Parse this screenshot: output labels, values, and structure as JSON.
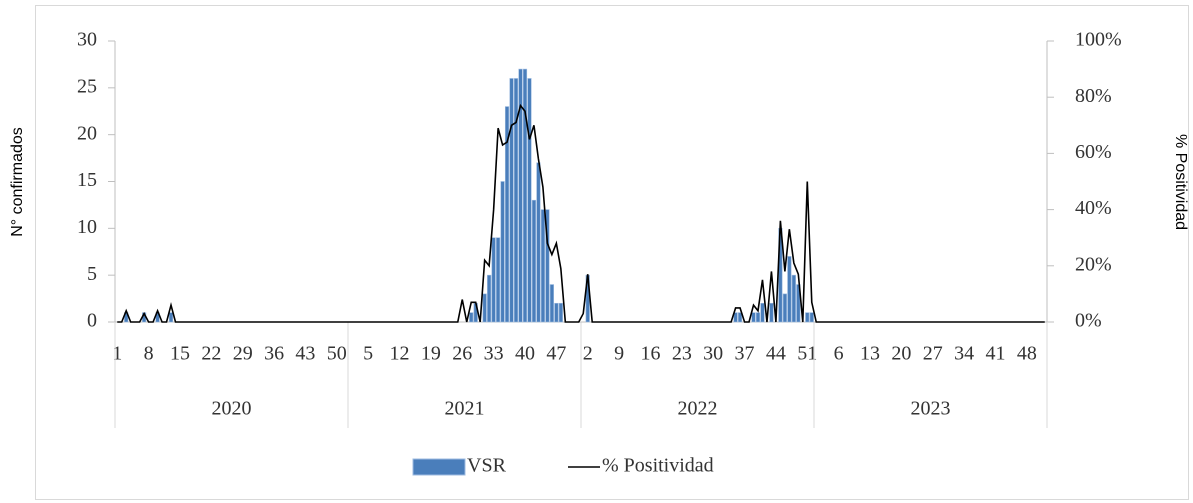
{
  "chart_data": {
    "type": "bar_line",
    "categories": [
      "1",
      null,
      null,
      null,
      null,
      null,
      null,
      "8",
      null,
      null,
      null,
      null,
      null,
      null,
      "15",
      null,
      null,
      null,
      null,
      null,
      null,
      "22",
      null,
      null,
      null,
      null,
      null,
      null,
      "29",
      null,
      null,
      null,
      null,
      null,
      null,
      "36",
      null,
      null,
      null,
      null,
      null,
      null,
      "43",
      null,
      null,
      null,
      null,
      null,
      null,
      "50",
      null,
      null,
      null,
      null,
      null,
      null,
      "5",
      null,
      null,
      null,
      null,
      null,
      null,
      "12",
      null,
      null,
      null,
      null,
      null,
      null,
      "19",
      null,
      null,
      null,
      null,
      null,
      null,
      "26",
      null,
      null,
      null,
      null,
      null,
      null,
      "33",
      null,
      null,
      null,
      null,
      null,
      null,
      "40",
      null,
      null,
      null,
      null,
      null,
      null,
      "47",
      null,
      null,
      null,
      null,
      null,
      null,
      "2",
      null,
      null,
      null,
      null,
      null,
      null,
      "9",
      null,
      null,
      null,
      null,
      null,
      null,
      "16",
      null,
      null,
      null,
      null,
      null,
      null,
      "23",
      null,
      null,
      null,
      null,
      null,
      null,
      "30",
      null,
      null,
      null,
      null,
      null,
      null,
      "37",
      null,
      null,
      null,
      null,
      null,
      null,
      "44",
      null,
      null,
      null,
      null,
      null,
      null,
      "51",
      null,
      null,
      null,
      null,
      null,
      null,
      "6",
      null,
      null,
      null,
      null,
      null,
      null,
      "13",
      null,
      null,
      null,
      null,
      null,
      null,
      "20",
      null,
      null,
      null,
      null,
      null,
      null,
      "27",
      null,
      null,
      null,
      null,
      null,
      null,
      "34",
      null,
      null,
      null,
      null,
      null,
      null,
      "41",
      null,
      null,
      null,
      null,
      null,
      null,
      "48",
      null,
      null,
      null,
      null
    ],
    "years": [
      "2020",
      "2021",
      "2022",
      "2023"
    ],
    "series": [
      {
        "name": "VSR",
        "color": "#4a7ebb",
        "kind": "bar",
        "values": [
          0,
          0,
          1,
          0,
          0,
          0,
          1,
          0,
          0,
          1,
          0,
          0,
          1,
          0,
          0,
          0,
          0,
          0,
          0,
          0,
          0,
          0,
          0,
          0,
          0,
          0,
          0,
          0,
          0,
          0,
          0,
          0,
          0,
          0,
          0,
          0,
          0,
          0,
          0,
          0,
          0,
          0,
          0,
          0,
          0,
          0,
          0,
          0,
          0,
          0,
          0,
          0,
          0,
          0,
          0,
          0,
          0,
          0,
          0,
          0,
          0,
          0,
          0,
          0,
          0,
          0,
          0,
          0,
          0,
          0,
          0,
          0,
          0,
          0,
          0,
          0,
          0,
          0,
          0,
          1,
          2,
          0,
          3,
          5,
          9,
          9,
          15,
          23,
          26,
          26,
          27,
          27,
          26,
          13,
          17,
          12,
          12,
          4,
          2,
          2,
          0,
          0,
          0,
          0,
          0,
          5,
          0,
          0,
          0,
          0,
          0,
          0,
          0,
          0,
          0,
          0,
          0,
          0,
          0,
          0,
          0,
          0,
          0,
          0,
          0,
          0,
          0,
          0,
          0,
          0,
          0,
          0,
          0,
          0,
          0,
          0,
          0,
          0,
          1,
          1,
          0,
          0,
          1,
          1,
          2,
          0,
          2,
          0,
          10,
          3,
          7,
          5,
          4,
          0,
          1,
          1,
          0,
          0,
          0,
          0,
          0,
          0,
          0,
          0,
          0,
          0,
          0,
          0,
          0,
          0,
          0,
          0,
          0,
          0,
          0,
          0,
          0,
          0,
          0,
          0,
          0,
          0,
          0,
          0,
          0,
          0,
          0,
          0,
          0,
          0,
          0,
          0,
          0,
          0,
          0,
          0,
          0,
          0,
          0,
          0,
          0,
          0,
          0,
          0,
          0,
          0,
          0,
          0
        ]
      },
      {
        "name": "% Positividad",
        "color": "#000000",
        "kind": "line",
        "axis": "y2",
        "values": [
          0,
          0,
          4,
          0,
          0,
          0,
          3,
          0,
          0,
          4,
          0,
          0,
          6,
          0,
          0,
          0,
          0,
          0,
          0,
          0,
          0,
          0,
          0,
          0,
          0,
          0,
          0,
          0,
          0,
          0,
          0,
          0,
          0,
          0,
          0,
          0,
          0,
          0,
          0,
          0,
          0,
          0,
          0,
          0,
          0,
          0,
          0,
          0,
          0,
          0,
          0,
          0,
          0,
          0,
          0,
          0,
          0,
          0,
          0,
          0,
          0,
          0,
          0,
          0,
          0,
          0,
          0,
          0,
          0,
          0,
          0,
          0,
          0,
          0,
          0,
          0,
          0,
          8,
          0,
          7,
          7,
          0,
          22,
          20,
          40,
          69,
          63,
          64,
          70,
          71,
          77,
          75,
          65,
          70,
          58,
          48,
          28,
          24,
          28,
          19,
          0,
          0,
          0,
          0,
          3,
          17,
          0,
          0,
          0,
          0,
          0,
          0,
          0,
          0,
          0,
          0,
          0,
          0,
          0,
          0,
          0,
          0,
          0,
          0,
          0,
          0,
          0,
          0,
          0,
          0,
          0,
          0,
          0,
          0,
          0,
          0,
          0,
          0,
          5,
          5,
          0,
          0,
          6,
          4,
          15,
          0,
          18,
          0,
          36,
          18,
          33,
          21,
          17,
          0,
          50,
          7,
          0,
          0,
          0,
          0,
          0,
          0,
          0,
          0,
          0,
          0,
          0,
          0,
          0,
          0,
          0,
          0,
          0,
          0,
          0,
          0,
          0,
          0,
          0,
          0,
          0,
          0,
          0,
          0,
          0,
          0,
          0,
          0,
          0,
          0,
          0,
          0,
          0,
          0,
          0,
          0,
          0,
          0,
          0,
          0,
          0,
          0,
          0,
          0,
          0,
          0,
          0,
          0
        ]
      }
    ],
    "y_label": "N° confirmados",
    "y2_label": "% Positividad",
    "ylim": [
      0,
      30
    ],
    "yticks": [
      0,
      5,
      10,
      15,
      20,
      25,
      30
    ],
    "y2lim": [
      0,
      100
    ],
    "y2ticks": [
      {
        "value": 0,
        "label": "0%"
      },
      {
        "value": 20,
        "label": "20%"
      },
      {
        "value": 40,
        "label": "40%"
      },
      {
        "value": 60,
        "label": "60%"
      },
      {
        "value": 80,
        "label": "80%"
      },
      {
        "value": 100,
        "label": "100%"
      }
    ],
    "legend": "bottom",
    "grid": false
  }
}
